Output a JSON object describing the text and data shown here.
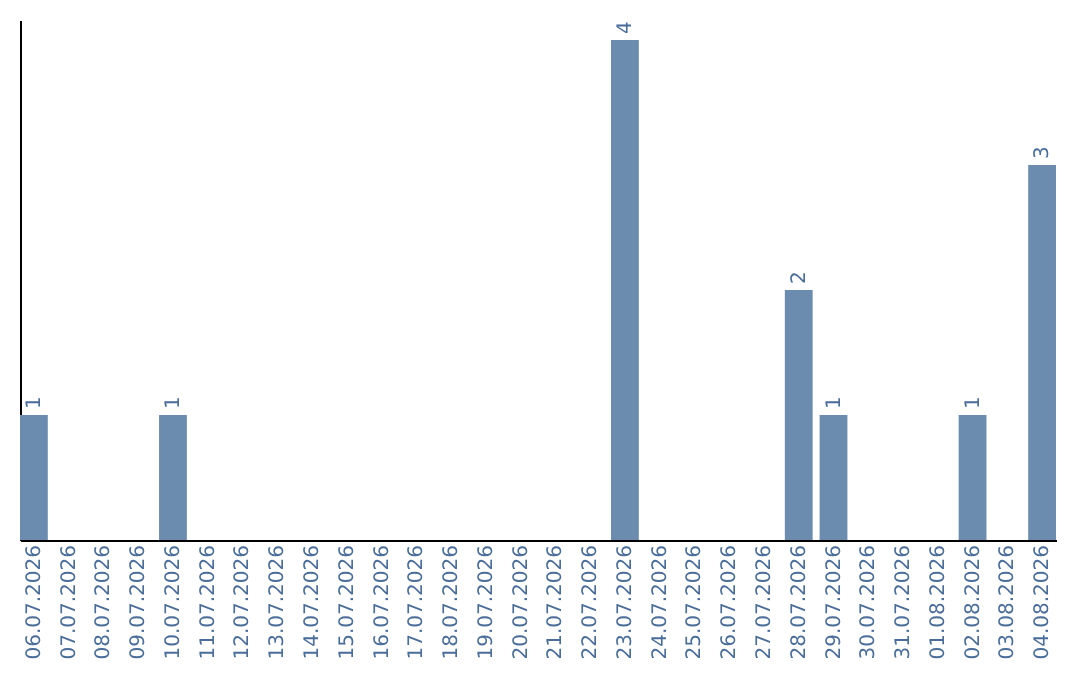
{
  "chart_data": {
    "type": "bar",
    "categories": [
      "06.07.2026",
      "07.07.2026",
      "08.07.2026",
      "09.07.2026",
      "10.07.2026",
      "11.07.2026",
      "12.07.2026",
      "13.07.2026",
      "14.07.2026",
      "15.07.2026",
      "16.07.2026",
      "17.07.2026",
      "18.07.2026",
      "19.07.2026",
      "20.07.2026",
      "21.07.2026",
      "22.07.2026",
      "23.07.2026",
      "24.07.2026",
      "25.07.2026",
      "26.07.2026",
      "27.07.2026",
      "28.07.2026",
      "29.07.2026",
      "30.07.2026",
      "31.07.2026",
      "01.08.2026",
      "02.08.2026",
      "03.08.2026",
      "04.08.2026"
    ],
    "values": [
      1,
      0,
      0,
      0,
      1,
      0,
      0,
      0,
      0,
      0,
      0,
      0,
      0,
      0,
      0,
      0,
      0,
      4,
      0,
      0,
      0,
      0,
      2,
      1,
      0,
      0,
      0,
      1,
      0,
      3
    ],
    "value_labels": [
      "1",
      null,
      null,
      null,
      "1",
      null,
      null,
      null,
      null,
      null,
      null,
      null,
      null,
      null,
      null,
      null,
      null,
      "4",
      null,
      null,
      null,
      null,
      "2",
      "1",
      null,
      null,
      null,
      "1",
      null,
      "3"
    ],
    "color": "#6b8cae",
    "grid": false,
    "tick_labels": "x"
  }
}
